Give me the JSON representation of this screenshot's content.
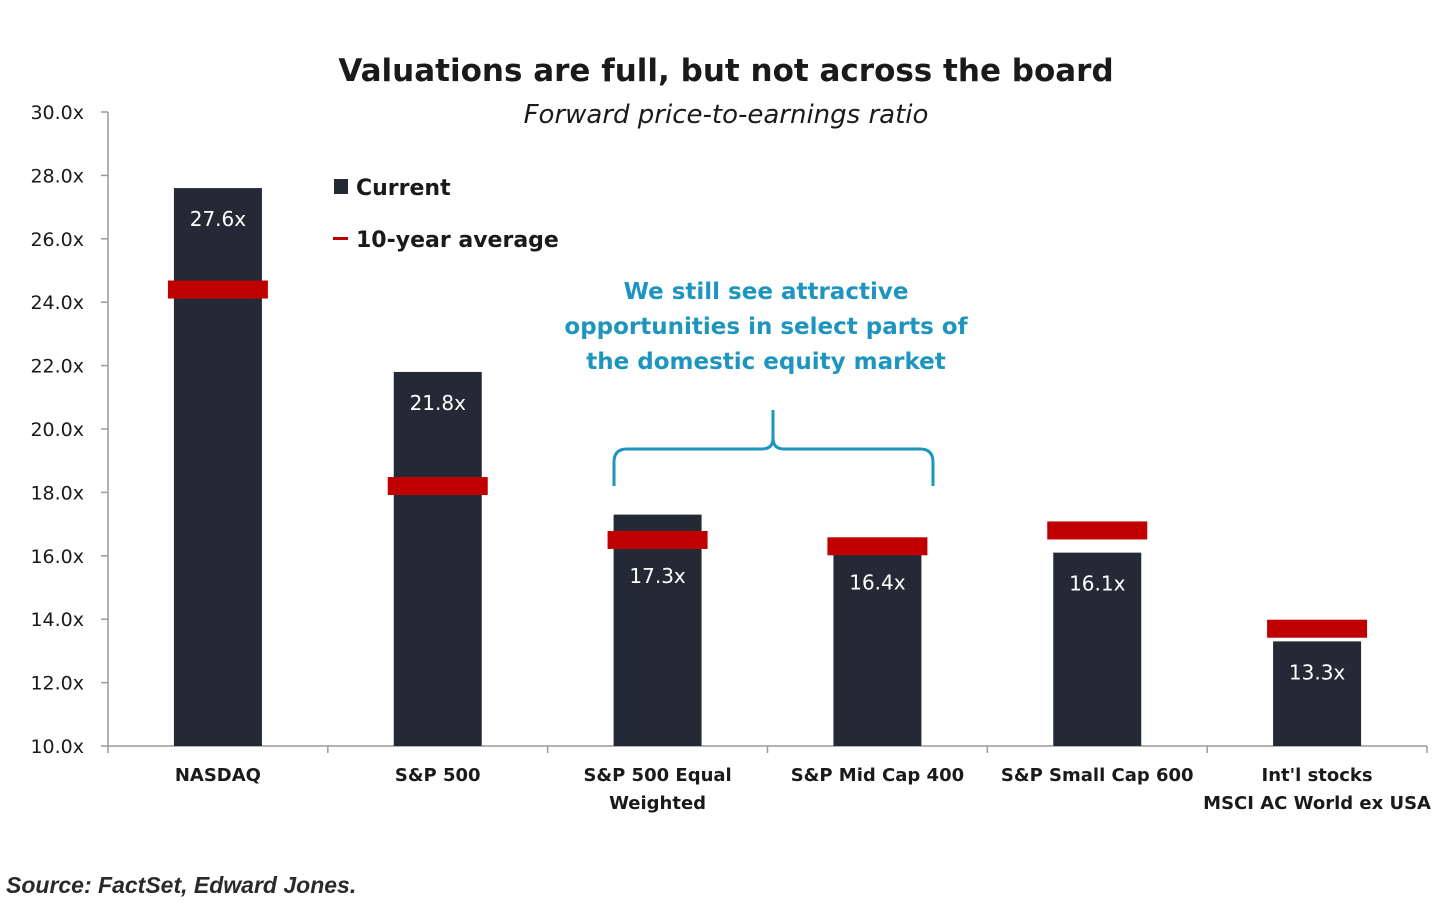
{
  "colors": {
    "bar": "#232a36",
    "average_marker": "#c00000",
    "annotation": "#1e95bf",
    "axis": "#9a9a9a"
  },
  "chart_data": {
    "type": "bar",
    "title": "Valuations are full, but not across the board",
    "subtitle": "Forward price-to-earnings ratio",
    "categories": [
      [
        "NASDAQ"
      ],
      [
        "S&P 500"
      ],
      [
        "S&P 500 Equal",
        "Weighted"
      ],
      [
        "S&P Mid Cap 400"
      ],
      [
        "S&P Small Cap 600"
      ],
      [
        "Int'l stocks",
        "MSCI AC World ex USA"
      ]
    ],
    "series": [
      {
        "name": "Current",
        "values": [
          27.6,
          21.8,
          17.3,
          16.4,
          16.1,
          13.3
        ],
        "labels": [
          "27.6x",
          "21.8x",
          "17.3x",
          "16.4x",
          "16.1x",
          "13.3x"
        ]
      },
      {
        "name": "10-year average",
        "values": [
          24.4,
          18.2,
          16.5,
          16.3,
          16.8,
          13.7
        ]
      }
    ],
    "ylim": [
      10,
      30
    ],
    "yticks": [
      10,
      12,
      14,
      16,
      18,
      20,
      22,
      24,
      26,
      28,
      30
    ],
    "ytick_labels": [
      "10.0x",
      "12.0x",
      "14.0x",
      "16.0x",
      "18.0x",
      "20.0x",
      "22.0x",
      "24.0x",
      "26.0x",
      "28.0x",
      "30.0x"
    ],
    "legend": {
      "position": "top-left",
      "entries": [
        "Current",
        "10-year average"
      ]
    },
    "annotation": {
      "lines": [
        "We still see attractive",
        "opportunities in select parts of",
        "the domestic equity market"
      ],
      "spans_categories": [
        2,
        3
      ]
    },
    "grid": false
  },
  "source": "Source: FactSet, Edward Jones."
}
